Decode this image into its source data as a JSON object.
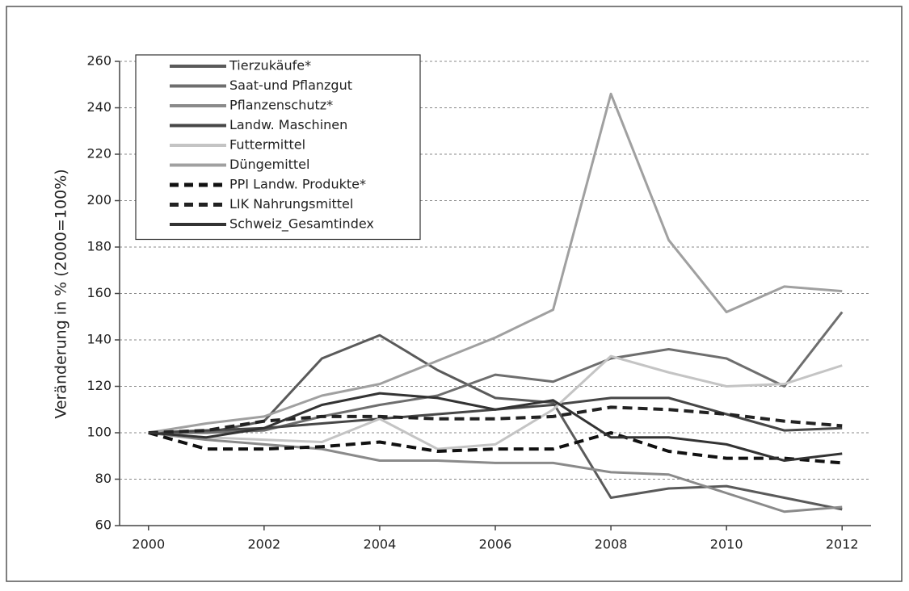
{
  "chart_data": {
    "type": "line",
    "y_label": "Veränderung in % (2000=100%)",
    "x": [
      2000,
      2001,
      2002,
      2003,
      2004,
      2005,
      2006,
      2007,
      2008,
      2009,
      2010,
      2011,
      2012
    ],
    "xlim": [
      1999.5,
      2012.5
    ],
    "xticks": [
      2000,
      2002,
      2004,
      2006,
      2008,
      2010,
      2012
    ],
    "ylim": [
      60,
      260
    ],
    "yticks": [
      60,
      80,
      100,
      120,
      140,
      160,
      180,
      200,
      220,
      240,
      260
    ],
    "grid": true,
    "legend": "top-left",
    "series": [
      {
        "name": "Tierzukäufe*",
        "color": "#5a5a5a",
        "dashed": false,
        "values": [
          100,
          100,
          105,
          132,
          142,
          127,
          115,
          113,
          72,
          76,
          77,
          72,
          67
        ]
      },
      {
        "name": "Saat-und Pflanzgut",
        "color": "#6e6e6e",
        "dashed": false,
        "values": [
          100,
          100,
          101,
          107,
          112,
          116,
          125,
          122,
          132,
          136,
          132,
          120,
          152
        ]
      },
      {
        "name": "Pflanzenschutz*",
        "color": "#8a8a8a",
        "dashed": false,
        "values": [
          100,
          97,
          95,
          93,
          88,
          88,
          87,
          87,
          83,
          82,
          74,
          66,
          68
        ]
      },
      {
        "name": "Landw. Maschinen",
        "color": "#474747",
        "dashed": false,
        "values": [
          100,
          101,
          102,
          104,
          106,
          108,
          110,
          112,
          115,
          115,
          108,
          101,
          102
        ]
      },
      {
        "name": "Futtermittel",
        "color": "#c4c4c4",
        "dashed": false,
        "values": [
          100,
          98,
          97,
          96,
          106,
          93,
          95,
          110,
          133,
          126,
          120,
          121,
          129
        ]
      },
      {
        "name": "Düngemittel",
        "color": "#a0a0a0",
        "dashed": false,
        "values": [
          100,
          104,
          107,
          116,
          121,
          131,
          141,
          153,
          246,
          183,
          152,
          163,
          161
        ]
      },
      {
        "name": "PPI Landw. Produkte*",
        "color": "#111111",
        "dashed": true,
        "values": [
          100,
          93,
          93,
          94,
          96,
          92,
          93,
          93,
          100,
          92,
          89,
          89,
          87
        ]
      },
      {
        "name": "LIK Nahrungsmittel",
        "color": "#222222",
        "dashed": true,
        "values": [
          100,
          101,
          105,
          107,
          107,
          106,
          106,
          107,
          111,
          110,
          108,
          105,
          103
        ]
      },
      {
        "name": "Schweiz_Gesamtindex",
        "color": "#333333",
        "dashed": false,
        "values": [
          100,
          98,
          102,
          112,
          117,
          115,
          110,
          114,
          98,
          98,
          95,
          88,
          91
        ]
      }
    ]
  }
}
